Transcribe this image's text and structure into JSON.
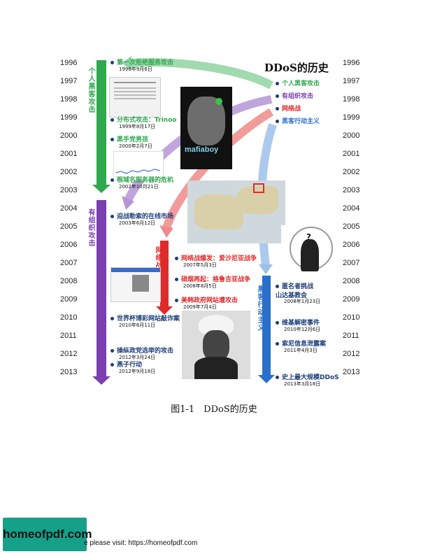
{
  "figure": {
    "title": "DDoS的历史",
    "legend": [
      {
        "label": "个人黑客攻击",
        "color": "#2fa84f"
      },
      {
        "label": "有组织攻击",
        "color": "#7b3fb0"
      },
      {
        "label": "网络战",
        "color": "#e02a2a"
      },
      {
        "label": "黑客行动主义",
        "color": "#2a6fc9"
      }
    ],
    "years": [
      "1996",
      "1997",
      "1998",
      "1999",
      "2000",
      "2001",
      "2002",
      "2003",
      "2004",
      "2005",
      "2006",
      "2007",
      "2008",
      "2009",
      "2010",
      "2011",
      "2012",
      "2013"
    ],
    "phase_labels": {
      "individual": "个人黑客攻击",
      "organized": "有组织攻击",
      "cyberwar": "网络战",
      "hacktivism": "黑客行动主义"
    },
    "events": [
      {
        "text": "第一次拒绝服务攻击",
        "date": "1996年9月6日",
        "color": "#2fa84f"
      },
      {
        "text": "分布式攻击：Trinoo",
        "date": "1999年8月17日",
        "color": "#2fa84f"
      },
      {
        "text": "黑手党男孩",
        "date": "2000年2月7日",
        "color": "#2fa84f"
      },
      {
        "text": "根域名服务器的危机",
        "date": "2002年10月21日",
        "color": "#2fa84f"
      },
      {
        "text": "迎战勒索的在线市场",
        "date": "2003年6月12日",
        "color": "#1c3d7a"
      },
      {
        "text": "网络战爆发：爱沙尼亚战争",
        "date": "2007年5月3日",
        "color": "#e02a2a"
      },
      {
        "text": "硝烟再起：格鲁吉亚战争",
        "date": "2008年8月5日",
        "color": "#e02a2a"
      },
      {
        "text": "美韩政府网站遭攻击",
        "date": "2009年7月4日",
        "color": "#e02a2a"
      },
      {
        "text": "世界杯博彩网站敲诈案",
        "date": "2010年6月11日",
        "color": "#1c3d7a"
      },
      {
        "text": "操纵政党选举的攻击",
        "date": "2012年3月24日",
        "color": "#1c3d7a"
      },
      {
        "text": "燕子行动",
        "date": "2012年9月18日",
        "color": "#1c3d7a"
      },
      {
        "text": "匿名者挑战\n山达基教会",
        "date": "2008年1月23日",
        "color": "#1c3d7a"
      },
      {
        "text": "维基解密事件",
        "date": "2010年12月6日",
        "color": "#1c3d7a"
      },
      {
        "text": "索尼信息泄露案",
        "date": "2011年4月3日",
        "color": "#1c3d7a"
      },
      {
        "text": "史上最大规模DDoS",
        "date": "2013年3月18日",
        "color": "#1c3d7a"
      }
    ],
    "book_title": "mafiaboy"
  },
  "caption": "图1-1　DDoS的历史",
  "footer": {
    "logo": "homeofpdf.com",
    "text": "e please visit: https://homeofpdf.com"
  }
}
